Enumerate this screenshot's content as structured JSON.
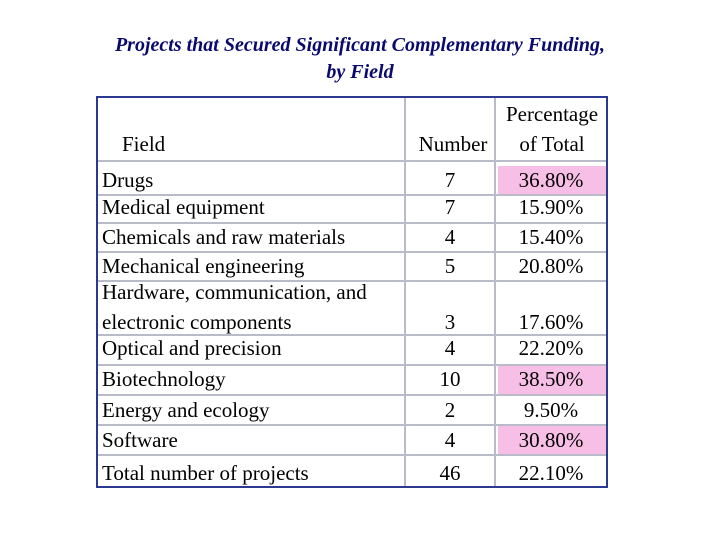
{
  "title": {
    "line1": "Projects that Secured Significant Complementary Funding,",
    "line2": "by Field"
  },
  "table": {
    "headers": {
      "field": "Field",
      "number": "Number",
      "percentage_line1": "Percentage",
      "percentage_line2": "of Total"
    },
    "rows": [
      {
        "field": "Drugs",
        "number": "7",
        "percentage": "36.80%",
        "highlight": true
      },
      {
        "field": "Medical equipment",
        "number": "7",
        "percentage": "15.90%",
        "highlight": false
      },
      {
        "field": "Chemicals and raw materials",
        "number": "4",
        "percentage": "15.40%",
        "highlight": false
      },
      {
        "field": "Mechanical engineering",
        "number": "5",
        "percentage": "20.80%",
        "highlight": false
      },
      {
        "field_line1": "Hardware, communication, and",
        "field_line2": "electronic components",
        "number": "3",
        "percentage": "17.60%",
        "highlight": false
      },
      {
        "field": "Optical and precision",
        "number": "4",
        "percentage": "22.20%",
        "highlight": false
      },
      {
        "field": "Biotechnology",
        "number": "10",
        "percentage": "38.50%",
        "highlight": true
      },
      {
        "field": "Energy and ecology",
        "number": "2",
        "percentage": "9.50%",
        "highlight": false
      },
      {
        "field": "Software",
        "number": "4",
        "percentage": "30.80%",
        "highlight": true
      }
    ],
    "total": {
      "field": "Total number of projects",
      "number": "46",
      "percentage": "22.10%"
    },
    "colors": {
      "border": "#2b3a8f",
      "grid": "#b9bcc8",
      "highlight": "#f7bfe6",
      "title": "#0a0a6e"
    }
  }
}
